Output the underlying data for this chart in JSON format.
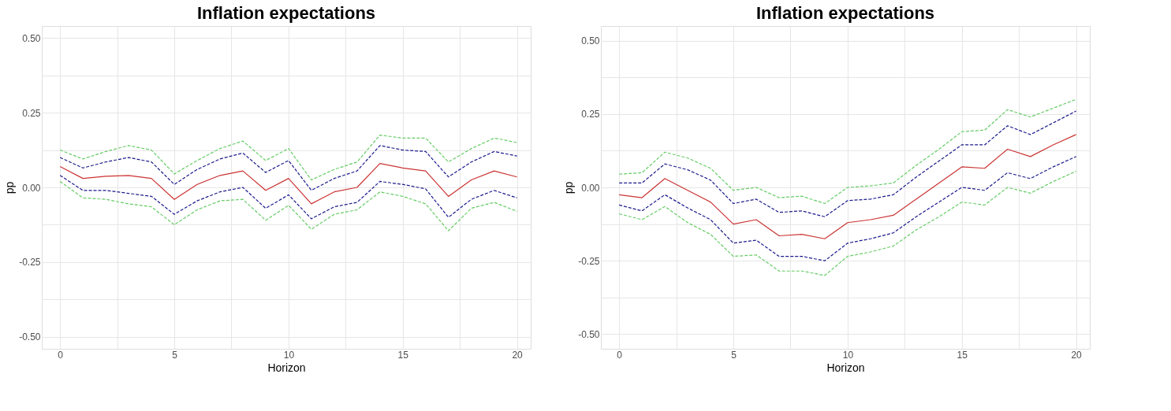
{
  "chart_data": [
    {
      "type": "line",
      "title": "Inflation expectations",
      "xlabel": "Horizon",
      "ylabel": "pp",
      "grid": true,
      "x": [
        0,
        1,
        2,
        3,
        4,
        5,
        6,
        7,
        8,
        9,
        10,
        11,
        12,
        13,
        14,
        15,
        16,
        17,
        18,
        19,
        20
      ],
      "xlim": [
        -0.8,
        20.6
      ],
      "ylim": [
        -0.54,
        0.54
      ],
      "xticks": [
        0,
        {
          "value": 2.5,
          "label": null
        },
        5,
        {
          "value": 7.5,
          "label": null
        },
        10,
        {
          "value": 12.5,
          "label": null
        },
        15,
        {
          "value": 17.5,
          "label": null
        },
        20
      ],
      "yticks": [
        {
          "value": -0.5,
          "label": "-0.50"
        },
        {
          "value": -0.375,
          "label": null
        },
        {
          "value": -0.25,
          "label": "-0.25"
        },
        {
          "value": -0.125,
          "label": null
        },
        {
          "value": 0,
          "label": "0.00"
        },
        {
          "value": 0.125,
          "label": null
        },
        {
          "value": 0.25,
          "label": "0.25"
        },
        {
          "value": 0.375,
          "label": null
        },
        {
          "value": 0.5,
          "label": "0.50"
        }
      ],
      "series": [
        {
          "color": "#66cc66",
          "line_style": "dashed",
          "values": [
            0.125,
            0.095,
            0.12,
            0.14,
            0.125,
            0.045,
            0.09,
            0.13,
            0.155,
            0.09,
            0.13,
            0.025,
            0.06,
            0.085,
            0.175,
            0.165,
            0.165,
            0.085,
            0.13,
            0.165,
            0.15
          ]
        },
        {
          "color": "#1a1a8c",
          "line_style": "dashed",
          "values": [
            0.1,
            0.065,
            0.085,
            0.1,
            0.085,
            0.01,
            0.06,
            0.095,
            0.115,
            0.05,
            0.09,
            -0.01,
            0.03,
            0.055,
            0.14,
            0.125,
            0.12,
            0.035,
            0.085,
            0.12,
            0.105
          ]
        },
        {
          "color": "#cc3333",
          "line_style": "solid",
          "values": [
            0.07,
            0.03,
            0.037,
            0.04,
            0.03,
            -0.04,
            0.01,
            0.04,
            0.055,
            -0.01,
            0.03,
            -0.055,
            -0.015,
            0.0,
            0.08,
            0.065,
            0.055,
            -0.03,
            0.025,
            0.055,
            0.035
          ]
        },
        {
          "color": "#1a1a8c",
          "line_style": "dashed",
          "values": [
            0.04,
            -0.01,
            -0.01,
            -0.02,
            -0.03,
            -0.09,
            -0.045,
            -0.015,
            0.0,
            -0.07,
            -0.025,
            -0.105,
            -0.065,
            -0.05,
            0.02,
            0.01,
            -0.005,
            -0.1,
            -0.04,
            -0.01,
            -0.035
          ]
        },
        {
          "color": "#66cc66",
          "line_style": "dashed",
          "values": [
            0.02,
            -0.035,
            -0.04,
            -0.055,
            -0.065,
            -0.125,
            -0.075,
            -0.045,
            -0.04,
            -0.11,
            -0.06,
            -0.14,
            -0.09,
            -0.075,
            -0.015,
            -0.03,
            -0.055,
            -0.145,
            -0.07,
            -0.05,
            -0.08
          ]
        }
      ]
    },
    {
      "type": "line",
      "title": "Inflation expectations",
      "xlabel": "Horizon",
      "ylabel": "pp",
      "grid": true,
      "x": [
        0,
        1,
        2,
        3,
        4,
        5,
        6,
        7,
        8,
        9,
        10,
        11,
        12,
        13,
        14,
        15,
        16,
        17,
        18,
        19,
        20
      ],
      "xlim": [
        -0.8,
        20.6
      ],
      "ylim": [
        -0.55,
        0.55
      ],
      "xticks": [
        0,
        {
          "value": 2.5,
          "label": null
        },
        5,
        {
          "value": 7.5,
          "label": null
        },
        10,
        {
          "value": 12.5,
          "label": null
        },
        15,
        {
          "value": 17.5,
          "label": null
        },
        20
      ],
      "yticks": [
        {
          "value": -0.5,
          "label": "-0.50"
        },
        {
          "value": -0.375,
          "label": null
        },
        {
          "value": -0.25,
          "label": "-0.25"
        },
        {
          "value": -0.125,
          "label": null
        },
        {
          "value": 0,
          "label": "0.00"
        },
        {
          "value": 0.125,
          "label": null
        },
        {
          "value": 0.25,
          "label": "0.25"
        },
        {
          "value": 0.375,
          "label": null
        },
        {
          "value": 0.5,
          "label": "0.50"
        }
      ],
      "series": [
        {
          "color": "#66cc66",
          "line_style": "dashed",
          "values": [
            0.045,
            0.05,
            0.12,
            0.1,
            0.065,
            -0.01,
            0.0,
            -0.035,
            -0.03,
            -0.055,
            0.0,
            0.005,
            0.015,
            0.075,
            0.13,
            0.19,
            0.195,
            0.265,
            0.24,
            0.27,
            0.3
          ]
        },
        {
          "color": "#1a1a8c",
          "line_style": "dashed",
          "values": [
            0.015,
            0.015,
            0.08,
            0.06,
            0.025,
            -0.055,
            -0.04,
            -0.085,
            -0.08,
            -0.1,
            -0.045,
            -0.04,
            -0.025,
            0.035,
            0.09,
            0.145,
            0.145,
            0.21,
            0.18,
            0.22,
            0.26
          ]
        },
        {
          "color": "#cc3333",
          "line_style": "solid",
          "values": [
            -0.025,
            -0.035,
            0.03,
            -0.01,
            -0.05,
            -0.125,
            -0.11,
            -0.165,
            -0.16,
            -0.175,
            -0.12,
            -0.11,
            -0.095,
            -0.04,
            0.015,
            0.07,
            0.065,
            0.13,
            0.105,
            0.145,
            0.18
          ]
        },
        {
          "color": "#1a1a8c",
          "line_style": "dashed",
          "values": [
            -0.06,
            -0.08,
            -0.025,
            -0.07,
            -0.11,
            -0.19,
            -0.18,
            -0.235,
            -0.235,
            -0.25,
            -0.19,
            -0.175,
            -0.155,
            -0.1,
            -0.05,
            0.0,
            -0.01,
            0.05,
            0.03,
            0.07,
            0.105
          ]
        },
        {
          "color": "#66cc66",
          "line_style": "dashed",
          "values": [
            -0.09,
            -0.11,
            -0.065,
            -0.12,
            -0.16,
            -0.235,
            -0.23,
            -0.285,
            -0.285,
            -0.3,
            -0.235,
            -0.22,
            -0.2,
            -0.145,
            -0.1,
            -0.05,
            -0.06,
            0.0,
            -0.02,
            0.02,
            0.055
          ]
        }
      ]
    }
  ]
}
